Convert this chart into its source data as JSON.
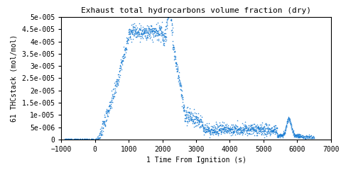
{
  "title": "Exhaust total hydrocarbons volume fraction (dry)",
  "xlabel": "1 Time From Ignition (s)",
  "ylabel": "61 THCstack (mol/mol)",
  "xlim": [
    -1000,
    7000
  ],
  "ylim": [
    0,
    5e-05
  ],
  "xticks": [
    -1000,
    0,
    1000,
    2000,
    3000,
    4000,
    5000,
    6000,
    7000
  ],
  "yticks": [
    0,
    5e-06,
    1e-05,
    1.5e-05,
    2e-05,
    2.5e-05,
    3e-05,
    3.5e-05,
    4e-05,
    4.5e-05,
    5e-05
  ],
  "line_color": "#1e7fd4",
  "marker": "*",
  "markersize": 1.8,
  "background_color": "#ffffff",
  "font": "monospace",
  "title_fontsize": 8,
  "label_fontsize": 7,
  "tick_fontsize": 7
}
